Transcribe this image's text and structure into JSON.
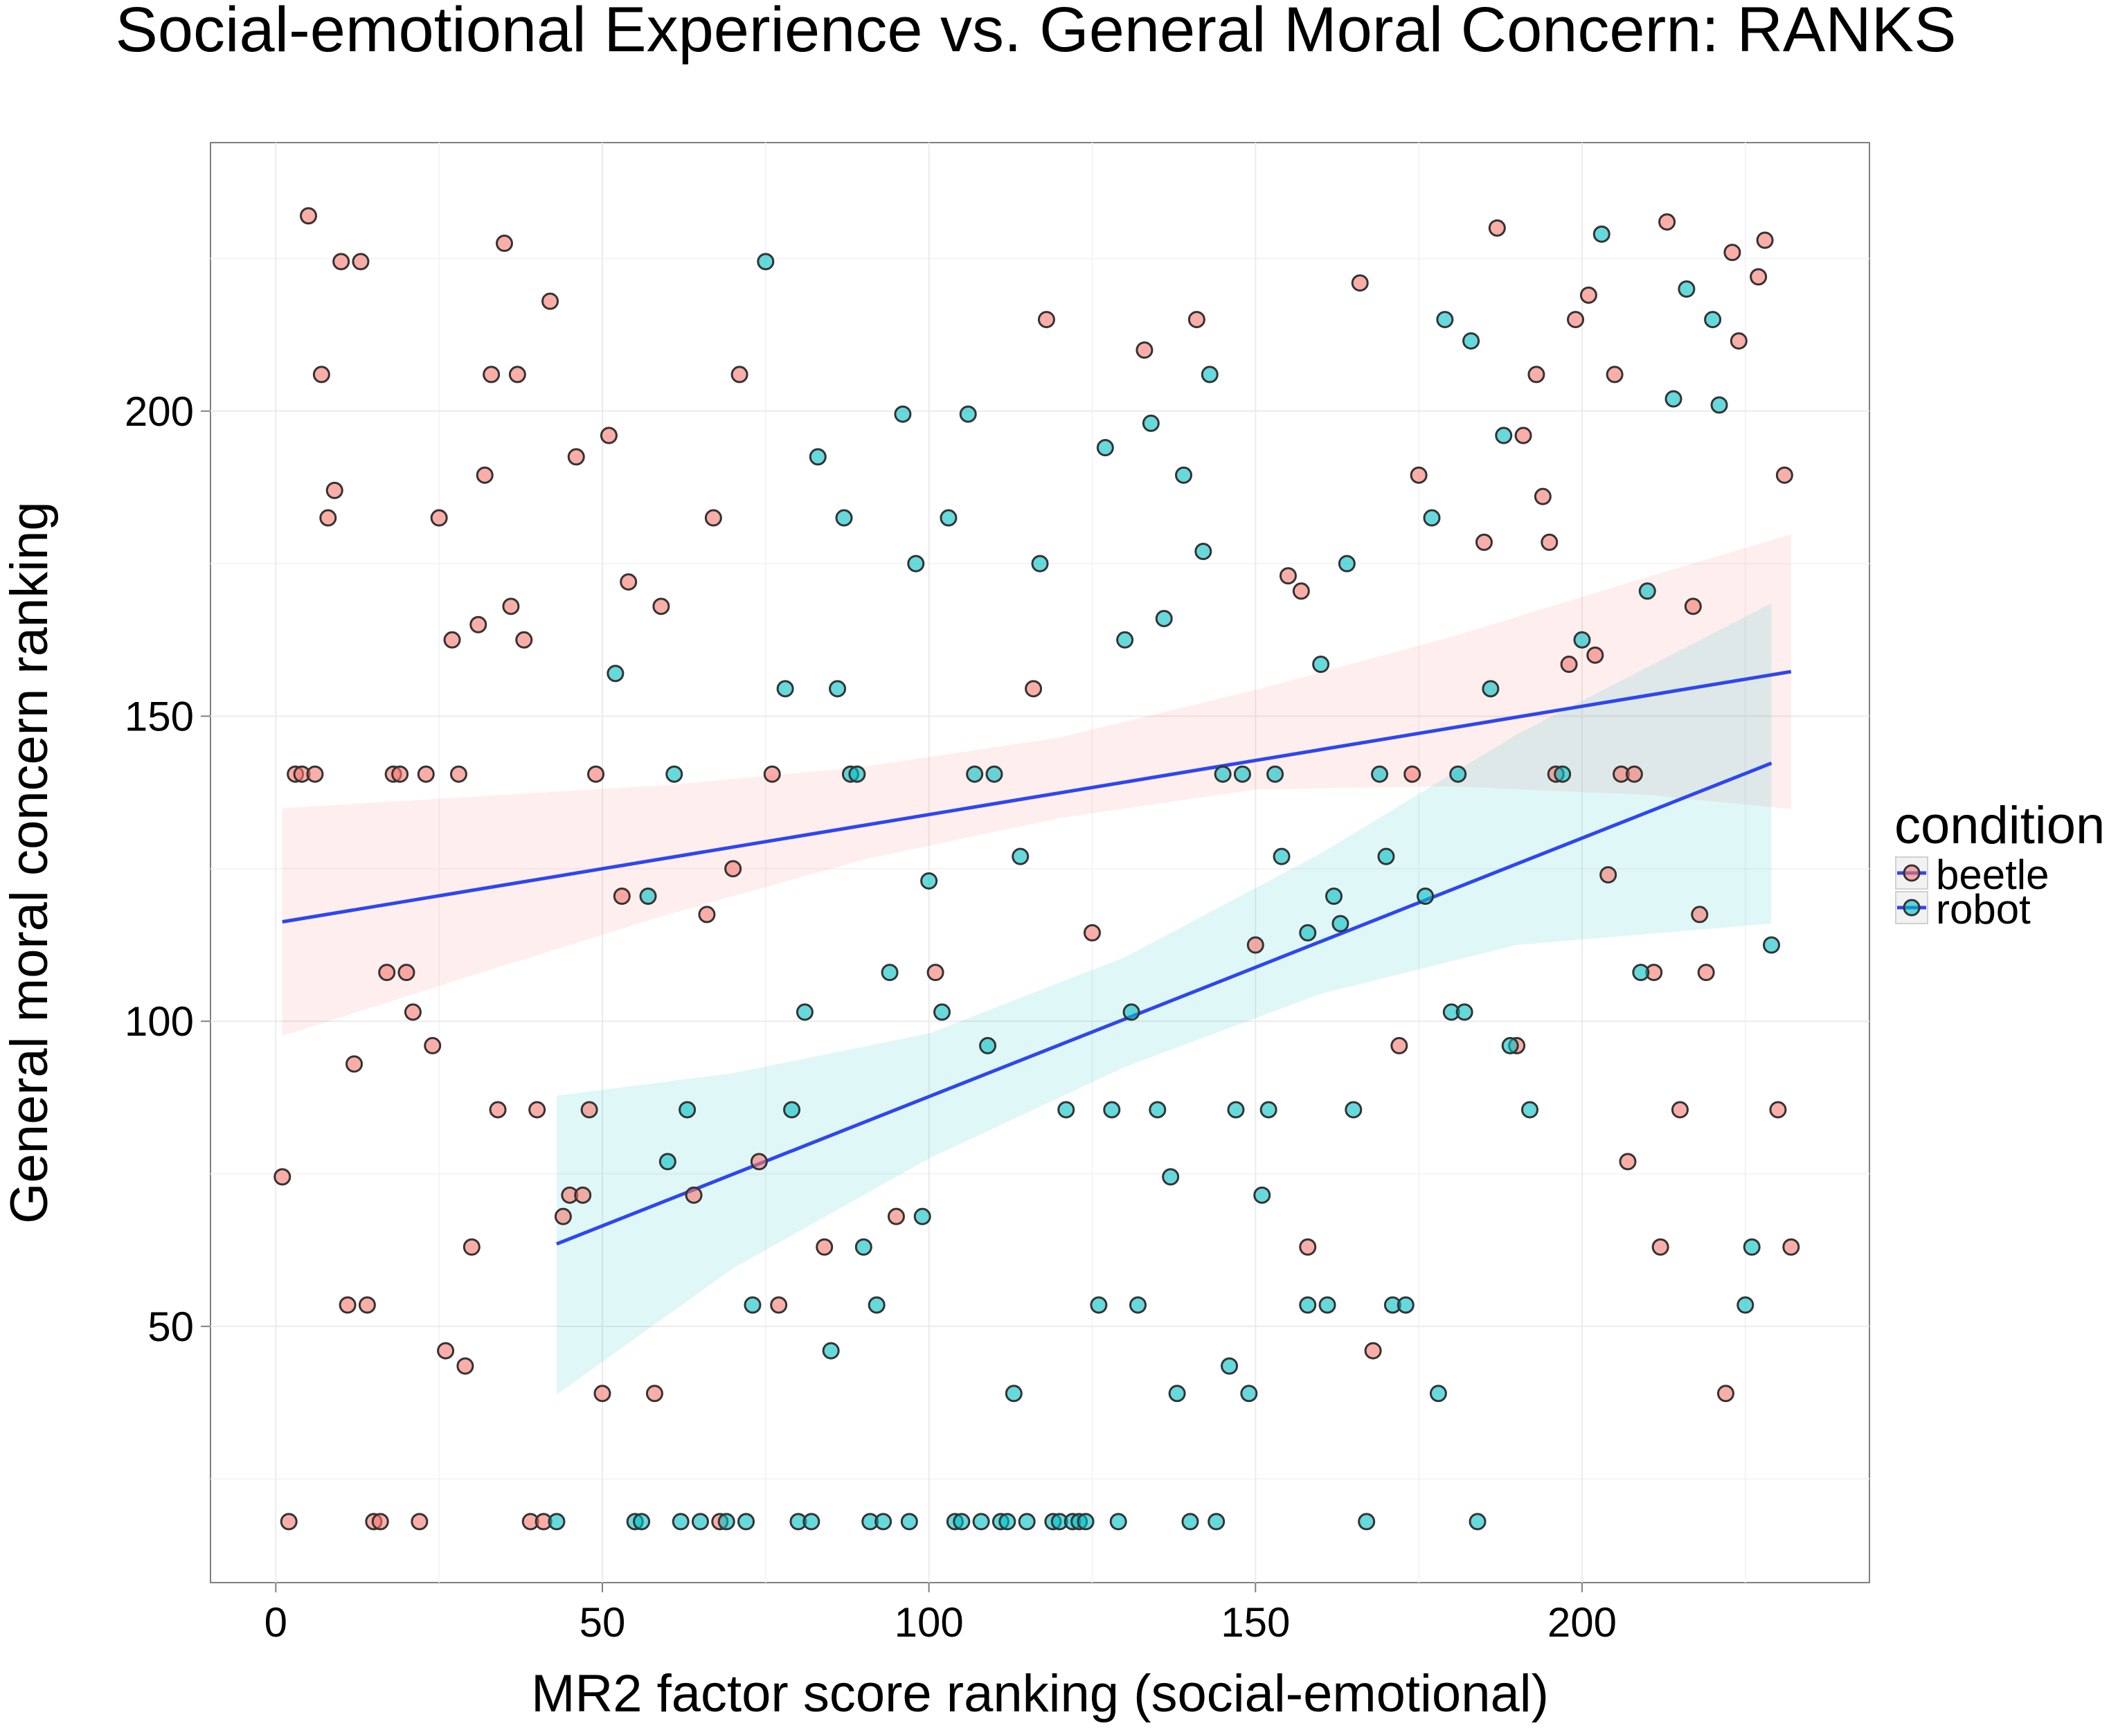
{
  "chart_data": {
    "type": "scatter",
    "title": "Social-emotional Experience vs. General Moral Concern: RANKS",
    "xlabel": "MR2 factor score ranking (social-emotional)",
    "ylabel": "General moral concern ranking",
    "xlim": [
      -10,
      244
    ],
    "ylim": [
      8,
      244
    ],
    "xticks": [
      0,
      50,
      100,
      150,
      200
    ],
    "yticks": [
      50,
      100,
      150,
      200
    ],
    "grid": true,
    "legend": {
      "title": "condition",
      "position": "right",
      "entries": [
        "beetle",
        "robot"
      ]
    },
    "colors": {
      "beetle": "#F8766D",
      "robot": "#00BFC4",
      "fit_line": "#2E46F0",
      "point_outline": "#333333",
      "panel_border": "#7F7F7F",
      "grid": "#EBEBEB"
    },
    "series": [
      {
        "name": "beetle",
        "fit": {
          "x": [
            1,
            232
          ],
          "y": [
            116.3,
            157.3
          ]
        },
        "ci_band": {
          "x": [
            1,
            30,
            60,
            90,
            120,
            150,
            180,
            210,
            232
          ],
          "lower": [
            97.6,
            107.5,
            117.5,
            126.5,
            133.3,
            138.0,
            138.5,
            137.1,
            134.8
          ],
          "upper": [
            134.9,
            136.8,
            138.7,
            141.7,
            146.5,
            154.3,
            163.0,
            172.8,
            179.8
          ]
        },
        "points": [
          [
            1,
            74.5
          ],
          [
            2,
            18
          ],
          [
            3,
            140.5
          ],
          [
            4,
            140.5
          ],
          [
            5,
            232
          ],
          [
            6,
            140.5
          ],
          [
            7,
            206
          ],
          [
            8,
            182.5
          ],
          [
            9,
            187
          ],
          [
            10,
            224.5
          ],
          [
            11,
            53.5
          ],
          [
            12,
            93
          ],
          [
            13,
            224.5
          ],
          [
            14,
            53.5
          ],
          [
            15,
            18
          ],
          [
            16,
            18
          ],
          [
            17,
            108
          ],
          [
            18,
            140.5
          ],
          [
            19,
            140.5
          ],
          [
            20,
            108
          ],
          [
            21,
            101.5
          ],
          [
            22,
            18
          ],
          [
            23,
            140.5
          ],
          [
            24,
            96
          ],
          [
            25,
            182.5
          ],
          [
            26,
            46
          ],
          [
            27,
            162.5
          ],
          [
            28,
            140.5
          ],
          [
            29,
            43.5
          ],
          [
            30,
            63
          ],
          [
            31,
            165
          ],
          [
            32,
            189.5
          ],
          [
            33,
            206
          ],
          [
            34,
            85.5
          ],
          [
            35,
            227.5
          ],
          [
            36,
            168
          ],
          [
            37,
            206
          ],
          [
            38,
            162.5
          ],
          [
            39,
            18
          ],
          [
            40,
            85.5
          ],
          [
            41,
            18
          ],
          [
            42,
            218
          ],
          [
            44,
            68
          ],
          [
            45,
            71.5
          ],
          [
            46,
            192.5
          ],
          [
            47,
            71.5
          ],
          [
            48,
            85.5
          ],
          [
            49,
            140.5
          ],
          [
            50,
            39
          ],
          [
            51,
            196
          ],
          [
            53,
            120.5
          ],
          [
            54,
            172
          ],
          [
            58,
            39
          ],
          [
            59,
            168
          ],
          [
            64,
            71.5
          ],
          [
            66,
            117.5
          ],
          [
            67,
            182.5
          ],
          [
            68,
            18
          ],
          [
            70,
            125
          ],
          [
            71,
            206
          ],
          [
            74,
            77
          ],
          [
            76,
            140.5
          ],
          [
            77,
            53.5
          ],
          [
            84,
            63
          ],
          [
            95,
            68
          ],
          [
            101,
            108
          ],
          [
            116,
            154.5
          ],
          [
            118,
            215
          ],
          [
            125,
            114.5
          ],
          [
            133,
            210
          ],
          [
            141,
            215
          ],
          [
            150,
            112.5
          ],
          [
            155,
            173
          ],
          [
            157,
            170.5
          ],
          [
            158,
            63
          ],
          [
            166,
            221
          ],
          [
            168,
            46
          ],
          [
            172,
            96
          ],
          [
            174,
            140.5
          ],
          [
            175,
            189.5
          ],
          [
            185,
            178.5
          ],
          [
            187,
            230
          ],
          [
            190,
            96
          ],
          [
            191,
            196
          ],
          [
            193,
            206
          ],
          [
            194,
            186
          ],
          [
            195,
            178.5
          ],
          [
            196,
            140.5
          ],
          [
            198,
            158.5
          ],
          [
            199,
            215
          ],
          [
            201,
            219
          ],
          [
            202,
            160
          ],
          [
            204,
            124
          ],
          [
            205,
            206
          ],
          [
            206,
            140.5
          ],
          [
            207,
            77
          ],
          [
            208,
            140.5
          ],
          [
            211,
            108
          ],
          [
            212,
            63
          ],
          [
            213,
            231
          ],
          [
            215,
            85.5
          ],
          [
            217,
            168
          ],
          [
            218,
            117.5
          ],
          [
            219,
            108
          ],
          [
            222,
            39
          ],
          [
            223,
            226
          ],
          [
            224,
            211.5
          ],
          [
            227,
            222
          ],
          [
            228,
            228
          ],
          [
            230,
            85.5
          ],
          [
            231,
            189.5
          ],
          [
            232,
            63
          ]
        ]
      },
      {
        "name": "robot",
        "fit": {
          "x": [
            43,
            229
          ],
          "y": [
            63.5,
            142.3
          ]
        },
        "ci_band": {
          "x": [
            43,
            70,
            100,
            130,
            160,
            190,
            229
          ],
          "lower": [
            38.8,
            59.5,
            77.5,
            92.5,
            104.5,
            112.5,
            116.0
          ],
          "upper": [
            87.8,
            91.5,
            98.0,
            110.5,
            127.5,
            147.0,
            168.5
          ]
        },
        "points": [
          [
            43,
            18
          ],
          [
            52,
            157
          ],
          [
            55,
            18
          ],
          [
            56,
            18
          ],
          [
            57,
            120.5
          ],
          [
            60,
            77
          ],
          [
            61,
            140.5
          ],
          [
            62,
            18
          ],
          [
            63,
            85.5
          ],
          [
            65,
            18
          ],
          [
            69,
            18
          ],
          [
            72,
            18
          ],
          [
            73,
            53.5
          ],
          [
            75,
            224.5
          ],
          [
            78,
            154.5
          ],
          [
            79,
            85.5
          ],
          [
            80,
            18
          ],
          [
            81,
            101.5
          ],
          [
            82,
            18
          ],
          [
            83,
            192.5
          ],
          [
            85,
            46
          ],
          [
            86,
            154.5
          ],
          [
            87,
            182.5
          ],
          [
            88,
            140.5
          ],
          [
            89,
            140.5
          ],
          [
            90,
            63
          ],
          [
            91,
            18
          ],
          [
            92,
            53.5
          ],
          [
            93,
            18
          ],
          [
            94,
            108
          ],
          [
            96,
            199.5
          ],
          [
            97,
            18
          ],
          [
            98,
            175
          ],
          [
            99,
            68
          ],
          [
            100,
            123
          ],
          [
            102,
            101.5
          ],
          [
            103,
            182.5
          ],
          [
            104,
            18
          ],
          [
            105,
            18
          ],
          [
            106,
            199.5
          ],
          [
            107,
            140.5
          ],
          [
            108,
            18
          ],
          [
            109,
            96
          ],
          [
            110,
            140.5
          ],
          [
            111,
            18
          ],
          [
            112,
            18
          ],
          [
            113,
            39
          ],
          [
            114,
            127
          ],
          [
            115,
            18
          ],
          [
            117,
            175
          ],
          [
            119,
            18
          ],
          [
            120,
            18
          ],
          [
            121,
            85.5
          ],
          [
            122,
            18
          ],
          [
            123,
            18
          ],
          [
            124,
            18
          ],
          [
            126,
            53.5
          ],
          [
            127,
            194
          ],
          [
            128,
            85.5
          ],
          [
            129,
            18
          ],
          [
            130,
            162.5
          ],
          [
            131,
            101.5
          ],
          [
            132,
            53.5
          ],
          [
            134,
            198
          ],
          [
            135,
            85.5
          ],
          [
            136,
            166
          ],
          [
            137,
            74.5
          ],
          [
            138,
            39
          ],
          [
            139,
            189.5
          ],
          [
            140,
            18
          ],
          [
            142,
            177
          ],
          [
            143,
            206
          ],
          [
            144,
            18
          ],
          [
            145,
            140.5
          ],
          [
            146,
            43.5
          ],
          [
            147,
            85.5
          ],
          [
            148,
            140.5
          ],
          [
            149,
            39
          ],
          [
            151,
            71.5
          ],
          [
            152,
            85.5
          ],
          [
            153,
            140.5
          ],
          [
            154,
            127
          ],
          [
            158,
            114.5
          ],
          [
            158,
            53.5
          ],
          [
            160,
            158.5
          ],
          [
            161,
            53.5
          ],
          [
            162,
            120.5
          ],
          [
            163,
            116
          ],
          [
            164,
            175
          ],
          [
            165,
            85.5
          ],
          [
            167,
            18
          ],
          [
            169,
            140.5
          ],
          [
            170,
            127
          ],
          [
            171,
            53.5
          ],
          [
            173,
            53.5
          ],
          [
            176,
            120.5
          ],
          [
            177,
            182.5
          ],
          [
            178,
            39
          ],
          [
            179,
            215
          ],
          [
            180,
            101.5
          ],
          [
            181,
            140.5
          ],
          [
            182,
            101.5
          ],
          [
            183,
            211.5
          ],
          [
            184,
            18
          ],
          [
            186,
            154.5
          ],
          [
            188,
            196
          ],
          [
            189,
            96
          ],
          [
            192,
            85.5
          ],
          [
            197,
            140.5
          ],
          [
            200,
            162.5
          ],
          [
            203,
            229
          ],
          [
            209,
            108
          ],
          [
            210,
            170.5
          ],
          [
            214,
            202
          ],
          [
            216,
            220
          ],
          [
            220,
            215
          ],
          [
            221,
            201
          ],
          [
            225,
            53.5
          ],
          [
            226,
            63
          ],
          [
            229,
            112.5
          ]
        ]
      }
    ]
  }
}
